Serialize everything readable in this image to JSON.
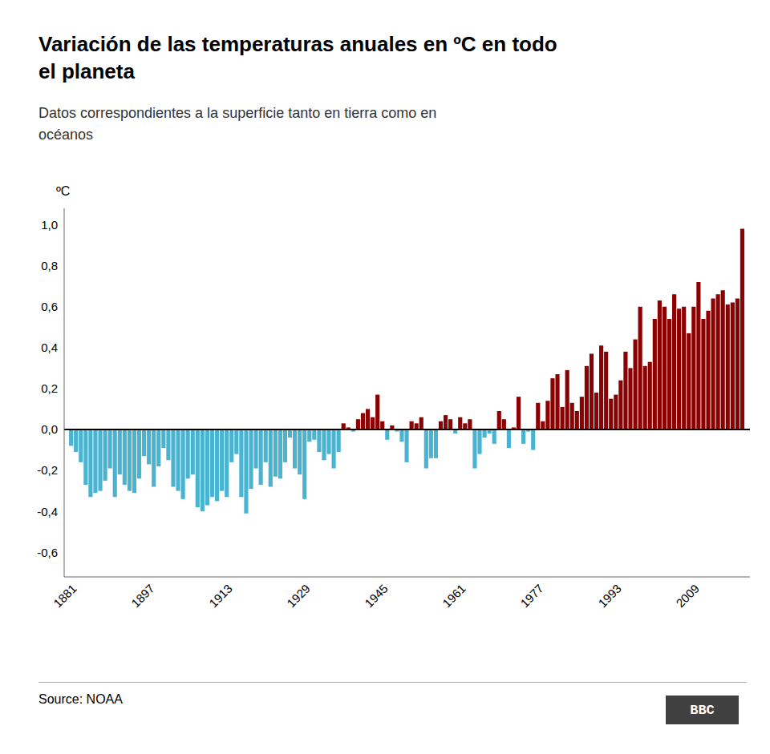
{
  "chart_data": {
    "type": "bar",
    "title": [
      "Variación de las temperaturas anuales en ºC en todo",
      "el planeta"
    ],
    "subtitle": [
      "Datos correspondientes a la superficie tanto en tierra como en",
      "océanos"
    ],
    "ylabel": "ºC",
    "source": "Source: NOAA",
    "logo": "BBC",
    "x": [
      1881,
      1882,
      1883,
      1884,
      1885,
      1886,
      1887,
      1888,
      1889,
      1890,
      1891,
      1892,
      1893,
      1894,
      1895,
      1896,
      1897,
      1898,
      1899,
      1900,
      1901,
      1902,
      1903,
      1904,
      1905,
      1906,
      1907,
      1908,
      1909,
      1910,
      1911,
      1912,
      1913,
      1914,
      1915,
      1916,
      1917,
      1918,
      1919,
      1920,
      1921,
      1922,
      1923,
      1924,
      1925,
      1926,
      1927,
      1928,
      1929,
      1930,
      1931,
      1932,
      1933,
      1934,
      1935,
      1936,
      1937,
      1938,
      1939,
      1940,
      1941,
      1942,
      1943,
      1944,
      1945,
      1946,
      1947,
      1948,
      1949,
      1950,
      1951,
      1952,
      1953,
      1954,
      1955,
      1956,
      1957,
      1958,
      1959,
      1960,
      1961,
      1962,
      1963,
      1964,
      1965,
      1966,
      1967,
      1968,
      1969,
      1970,
      1971,
      1972,
      1973,
      1974,
      1975,
      1976,
      1977,
      1978,
      1979,
      1980,
      1981,
      1982,
      1983,
      1984,
      1985,
      1986,
      1987,
      1988,
      1989,
      1990,
      1991,
      1992,
      1993,
      1994,
      1995,
      1996,
      1997,
      1998,
      1999,
      2000,
      2001,
      2002,
      2003,
      2004,
      2005,
      2006,
      2007,
      2008,
      2009,
      2010,
      2011,
      2012,
      2013,
      2014,
      2015,
      2016,
      2017,
      2018,
      2019
    ],
    "values": [
      -0.08,
      -0.11,
      -0.16,
      -0.27,
      -0.33,
      -0.31,
      -0.3,
      -0.25,
      -0.19,
      -0.33,
      -0.22,
      -0.27,
      -0.3,
      -0.31,
      -0.24,
      -0.13,
      -0.17,
      -0.28,
      -0.18,
      -0.09,
      -0.15,
      -0.28,
      -0.3,
      -0.34,
      -0.24,
      -0.22,
      -0.38,
      -0.4,
      -0.37,
      -0.33,
      -0.35,
      -0.3,
      -0.33,
      -0.16,
      -0.12,
      -0.33,
      -0.41,
      -0.29,
      -0.19,
      -0.27,
      -0.16,
      -0.28,
      -0.23,
      -0.24,
      -0.16,
      -0.04,
      -0.19,
      -0.22,
      -0.34,
      -0.06,
      -0.05,
      -0.11,
      -0.15,
      -0.12,
      -0.19,
      -0.11,
      0.03,
      0.01,
      -0.01,
      0.05,
      0.08,
      0.1,
      0.06,
      0.17,
      0.04,
      -0.05,
      0.02,
      -0.01,
      -0.06,
      -0.16,
      0.04,
      0.03,
      0.06,
      -0.19,
      -0.14,
      -0.14,
      0.04,
      0.07,
      0.05,
      -0.02,
      0.06,
      0.03,
      0.05,
      -0.19,
      -0.12,
      -0.04,
      -0.02,
      -0.07,
      0.09,
      0.05,
      -0.09,
      0.01,
      0.16,
      -0.07,
      -0.01,
      -0.1,
      0.13,
      0.04,
      0.14,
      0.25,
      0.27,
      0.11,
      0.29,
      0.13,
      0.09,
      0.16,
      0.31,
      0.37,
      0.18,
      0.41,
      0.38,
      0.15,
      0.17,
      0.24,
      0.38,
      0.3,
      0.44,
      0.6,
      0.31,
      0.33,
      0.54,
      0.63,
      0.6,
      0.54,
      0.66,
      0.59,
      0.6,
      0.47,
      0.6,
      0.72,
      0.54,
      0.58,
      0.64,
      0.66,
      0.68,
      0.61,
      0.62,
      0.64,
      0.98
    ],
    "colors": [
      "#4ab3d0",
      "#4ab3d0",
      "#4ab3d0",
      "#4ab3d0",
      "#4ab3d0",
      "#4ab3d0",
      "#4ab3d0",
      "#4ab3d0",
      "#4ab3d0",
      "#4ab3d0",
      "#4ab3d0",
      "#4ab3d0",
      "#4ab3d0",
      "#4ab3d0",
      "#4ab3d0",
      "#4ab3d0",
      "#4ab3d0",
      "#4ab3d0",
      "#4ab3d0",
      "#4ab3d0",
      "#4ab3d0",
      "#4ab3d0",
      "#4ab3d0",
      "#4ab3d0",
      "#4ab3d0",
      "#4ab3d0",
      "#4ab3d0",
      "#4ab3d0",
      "#4ab3d0",
      "#4ab3d0",
      "#4ab3d0",
      "#4ab3d0",
      "#4ab3d0",
      "#4ab3d0",
      "#4ab3d0",
      "#4ab3d0",
      "#4ab3d0",
      "#4ab3d0",
      "#4ab3d0",
      "#4ab3d0",
      "#4ab3d0",
      "#4ab3d0",
      "#4ab3d0",
      "#4ab3d0",
      "#4ab3d0",
      "#4ab3d0",
      "#4ab3d0",
      "#4ab3d0",
      "#4ab3d0",
      "#4ab3d0",
      "#4ab3d0",
      "#4ab3d0",
      "#4ab3d0",
      "#4ab3d0",
      "#4ab3d0",
      "#4ab3d0",
      "#8b0000",
      "#8b0000",
      "#4ab3d0",
      "#8b0000",
      "#8b0000",
      "#8b0000",
      "#8b0000",
      "#8b0000",
      "#8b0000",
      "#4ab3d0",
      "#8b0000",
      "#4ab3d0",
      "#4ab3d0",
      "#4ab3d0",
      "#8b0000",
      "#8b0000",
      "#8b0000",
      "#4ab3d0",
      "#4ab3d0",
      "#4ab3d0",
      "#8b0000",
      "#8b0000",
      "#8b0000",
      "#4ab3d0",
      "#8b0000",
      "#8b0000",
      "#8b0000",
      "#4ab3d0",
      "#4ab3d0",
      "#4ab3d0",
      "#4ab3d0",
      "#4ab3d0",
      "#8b0000",
      "#8b0000",
      "#4ab3d0",
      "#8b0000",
      "#8b0000",
      "#4ab3d0",
      "#4ab3d0",
      "#4ab3d0",
      "#8b0000",
      "#8b0000",
      "#8b0000",
      "#8b0000",
      "#8b0000",
      "#8b0000",
      "#8b0000",
      "#8b0000",
      "#8b0000",
      "#8b0000",
      "#8b0000",
      "#8b0000",
      "#8b0000",
      "#8b0000",
      "#8b0000",
      "#8b0000",
      "#8b0000",
      "#8b0000",
      "#8b0000",
      "#8b0000",
      "#8b0000",
      "#8b0000",
      "#8b0000",
      "#8b0000",
      "#8b0000",
      "#8b0000",
      "#8b0000",
      "#8b0000",
      "#8b0000",
      "#8b0000",
      "#8b0000",
      "#8b0000",
      "#8b0000",
      "#8b0000",
      "#8b0000",
      "#8b0000",
      "#8b0000",
      "#8b0000",
      "#8b0000",
      "#8b0000",
      "#8b0000",
      "#8b0000",
      "#8b0000"
    ],
    "xlim": [
      1879.5,
      2020.5
    ],
    "xticks": [
      1881,
      1897,
      1913,
      1929,
      1945,
      1961,
      1977,
      1993,
      2009
    ],
    "ylim": [
      -0.72,
      1.08
    ],
    "yticks": [
      {
        "value": -0.6,
        "label": "-0,6"
      },
      {
        "value": -0.4,
        "label": "-0,4"
      },
      {
        "value": -0.2,
        "label": "-0,2"
      },
      {
        "value": 0.0,
        "label": "0,0"
      },
      {
        "value": 0.2,
        "label": "0,2"
      },
      {
        "value": 0.4,
        "label": "0,4"
      },
      {
        "value": 0.6,
        "label": "0,6"
      },
      {
        "value": 0.8,
        "label": "0,8"
      },
      {
        "value": 1.0,
        "label": "1,0"
      }
    ],
    "grid": false
  }
}
